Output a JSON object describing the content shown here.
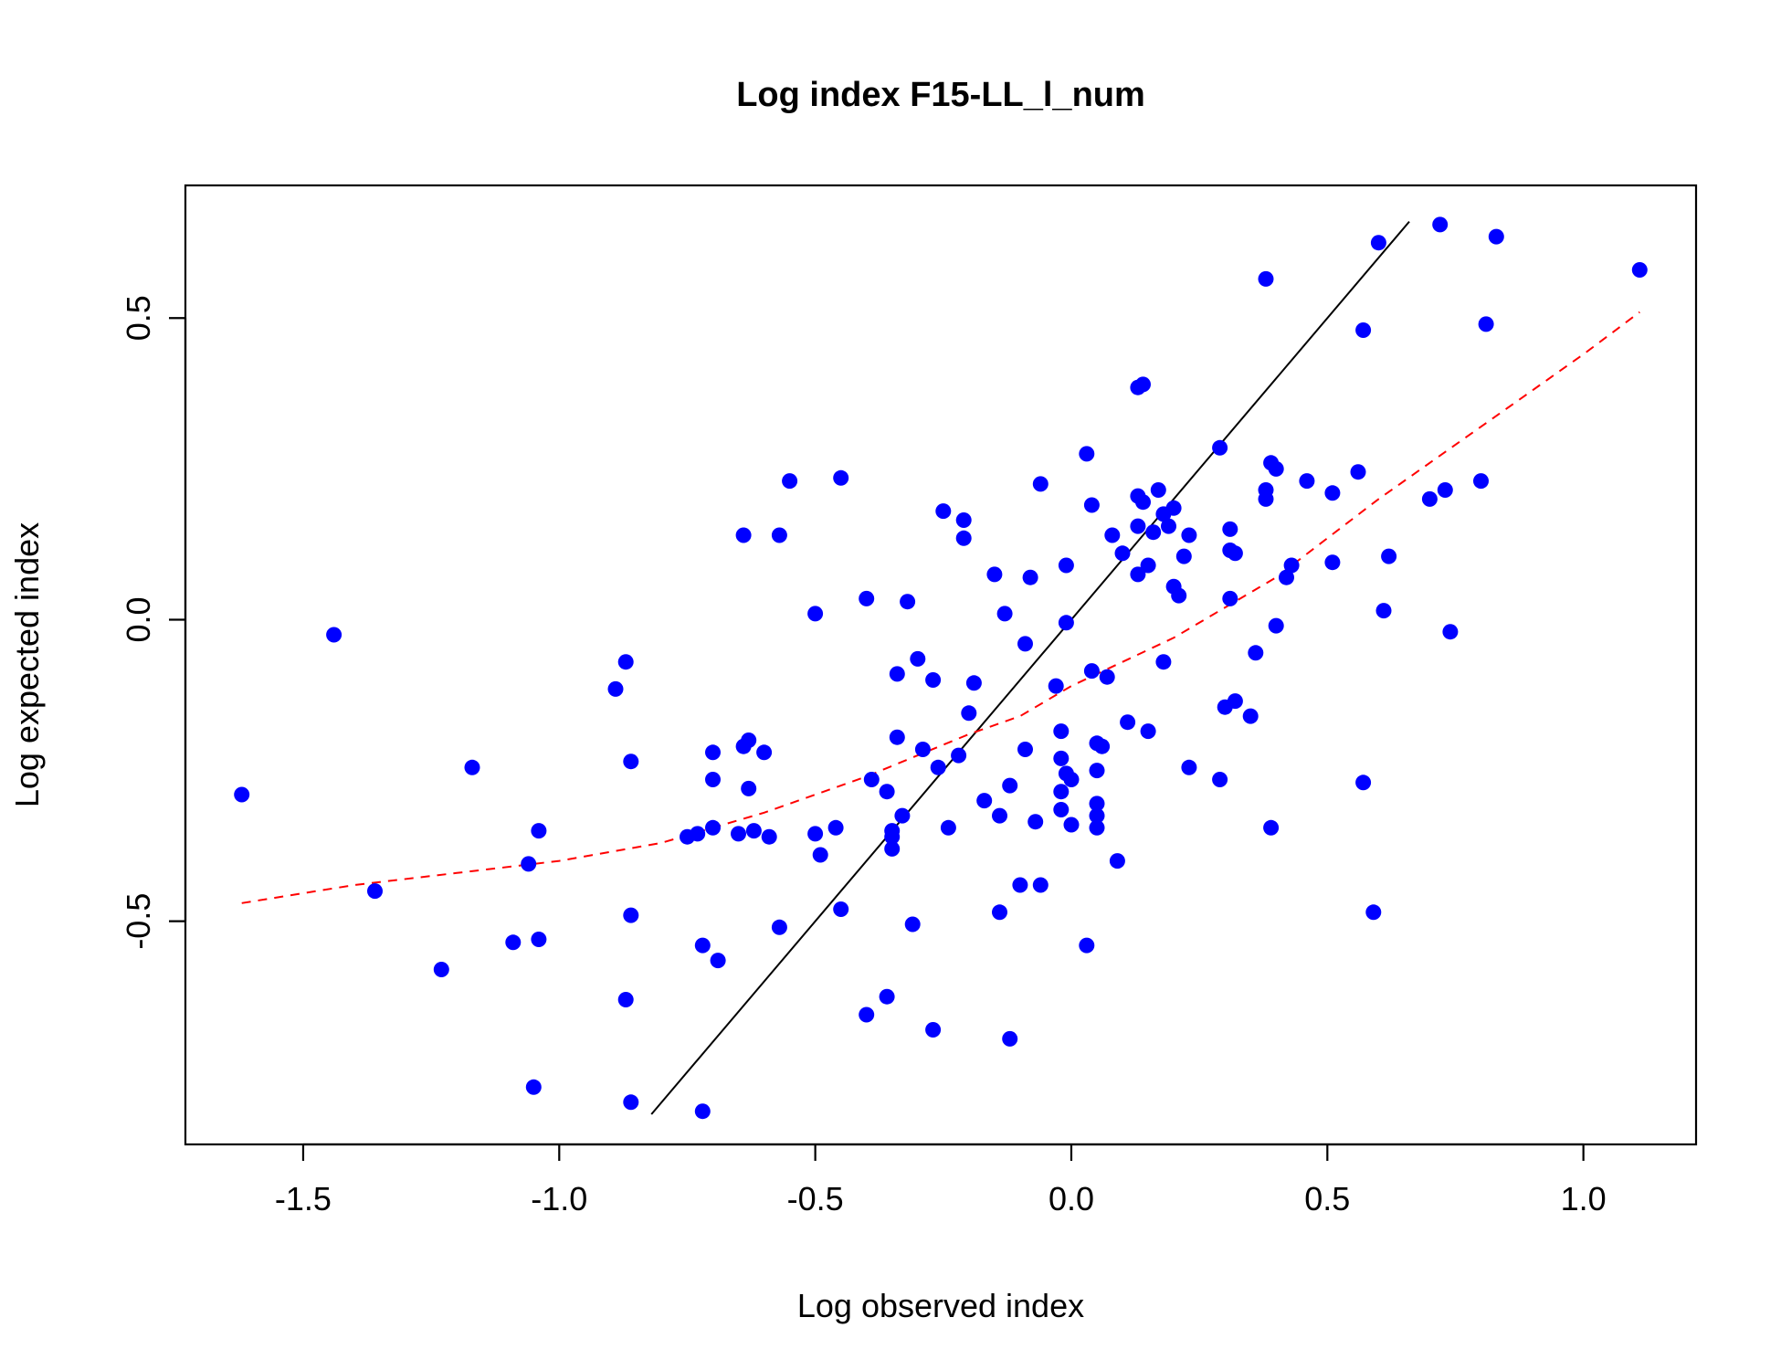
{
  "chart_data": {
    "type": "scatter",
    "title": "Log index F15-LL_l_num",
    "xlabel": "Log observed index",
    "ylabel": "Log expected index",
    "xlim": [
      -1.73,
      1.22
    ],
    "ylim": [
      -0.87,
      0.72
    ],
    "x_ticks": [
      -1.5,
      -1.0,
      -0.5,
      0.0,
      0.5,
      1.0
    ],
    "x_tick_labels": [
      "-1.5",
      "-1.0",
      "-0.5",
      "0.0",
      "0.5",
      "1.0"
    ],
    "y_ticks": [
      -0.5,
      0.0,
      0.5
    ],
    "y_tick_labels": [
      "-0.5",
      "0.0",
      "0.5"
    ],
    "grid": false,
    "legend": "none",
    "point_color": "#0000ff",
    "identity_line": {
      "color": "#000000",
      "x": [
        -0.82,
        0.66
      ],
      "y": [
        -0.82,
        0.66
      ]
    },
    "smooth_line": {
      "color": "#ff0000",
      "style": "dashed",
      "x": [
        -1.62,
        -1.4,
        -1.2,
        -1.0,
        -0.8,
        -0.6,
        -0.4,
        -0.2,
        -0.1,
        0.0,
        0.2,
        0.4,
        0.6,
        0.8,
        1.0,
        1.11
      ],
      "y": [
        -0.47,
        -0.44,
        -0.42,
        -0.4,
        -0.37,
        -0.32,
        -0.26,
        -0.19,
        -0.16,
        -0.11,
        -0.03,
        0.07,
        0.2,
        0.32,
        0.44,
        0.51
      ]
    },
    "points": [
      [
        -1.62,
        -0.29
      ],
      [
        -1.44,
        -0.025
      ],
      [
        -1.36,
        -0.45
      ],
      [
        -1.23,
        -0.58
      ],
      [
        -1.17,
        -0.245
      ],
      [
        -1.09,
        -0.535
      ],
      [
        -1.06,
        -0.405
      ],
      [
        -1.05,
        -0.775
      ],
      [
        -1.04,
        -0.35
      ],
      [
        -1.04,
        -0.53
      ],
      [
        -0.89,
        -0.115
      ],
      [
        -0.87,
        -0.07
      ],
      [
        -0.87,
        -0.63
      ],
      [
        -0.86,
        -0.235
      ],
      [
        -0.86,
        -0.49
      ],
      [
        -0.86,
        -0.8
      ],
      [
        -0.75,
        -0.36
      ],
      [
        -0.73,
        -0.355
      ],
      [
        -0.72,
        -0.54
      ],
      [
        -0.72,
        -0.815
      ],
      [
        -0.7,
        -0.22
      ],
      [
        -0.7,
        -0.265
      ],
      [
        -0.7,
        -0.345
      ],
      [
        -0.69,
        -0.565
      ],
      [
        -0.65,
        -0.355
      ],
      [
        -0.64,
        -0.21
      ],
      [
        -0.64,
        0.14
      ],
      [
        -0.63,
        -0.2
      ],
      [
        -0.63,
        -0.28
      ],
      [
        -0.62,
        -0.35
      ],
      [
        -0.6,
        -0.22
      ],
      [
        -0.59,
        -0.36
      ],
      [
        -0.57,
        0.14
      ],
      [
        -0.57,
        -0.51
      ],
      [
        -0.55,
        0.23
      ],
      [
        -0.5,
        -0.355
      ],
      [
        -0.5,
        0.01
      ],
      [
        -0.49,
        -0.39
      ],
      [
        -0.46,
        -0.345
      ],
      [
        -0.45,
        0.235
      ],
      [
        -0.45,
        -0.48
      ],
      [
        -0.4,
        -0.655
      ],
      [
        -0.4,
        0.035
      ],
      [
        -0.39,
        -0.265
      ],
      [
        -0.36,
        -0.625
      ],
      [
        -0.36,
        -0.285
      ],
      [
        -0.35,
        -0.36
      ],
      [
        -0.35,
        -0.35
      ],
      [
        -0.35,
        -0.38
      ],
      [
        -0.34,
        -0.09
      ],
      [
        -0.34,
        -0.195
      ],
      [
        -0.33,
        -0.325
      ],
      [
        -0.32,
        0.03
      ],
      [
        -0.31,
        -0.505
      ],
      [
        -0.3,
        -0.065
      ],
      [
        -0.29,
        -0.215
      ],
      [
        -0.27,
        -0.1
      ],
      [
        -0.27,
        -0.68
      ],
      [
        -0.26,
        -0.245
      ],
      [
        -0.25,
        0.18
      ],
      [
        -0.24,
        -0.345
      ],
      [
        -0.22,
        -0.225
      ],
      [
        -0.21,
        0.165
      ],
      [
        -0.21,
        0.135
      ],
      [
        -0.2,
        -0.155
      ],
      [
        -0.19,
        -0.105
      ],
      [
        -0.17,
        -0.3
      ],
      [
        -0.15,
        0.075
      ],
      [
        -0.14,
        -0.325
      ],
      [
        -0.14,
        -0.485
      ],
      [
        -0.13,
        0.01
      ],
      [
        -0.12,
        -0.275
      ],
      [
        -0.12,
        -0.695
      ],
      [
        -0.1,
        -0.44
      ],
      [
        -0.09,
        -0.215
      ],
      [
        -0.09,
        -0.04
      ],
      [
        -0.08,
        0.07
      ],
      [
        -0.07,
        -0.335
      ],
      [
        -0.06,
        -0.44
      ],
      [
        -0.06,
        0.225
      ],
      [
        -0.03,
        -0.11
      ],
      [
        -0.02,
        -0.185
      ],
      [
        -0.02,
        -0.23
      ],
      [
        -0.02,
        -0.285
      ],
      [
        -0.02,
        -0.315
      ],
      [
        -0.01,
        0.09
      ],
      [
        -0.01,
        -0.255
      ],
      [
        -0.01,
        -0.005
      ],
      [
        0.0,
        -0.265
      ],
      [
        0.0,
        -0.34
      ],
      [
        0.03,
        0.275
      ],
      [
        0.03,
        -0.54
      ],
      [
        0.04,
        0.19
      ],
      [
        0.04,
        -0.085
      ],
      [
        0.05,
        -0.305
      ],
      [
        0.05,
        -0.325
      ],
      [
        0.05,
        -0.345
      ],
      [
        0.05,
        -0.205
      ],
      [
        0.05,
        -0.25
      ],
      [
        0.06,
        -0.21
      ],
      [
        0.07,
        -0.095
      ],
      [
        0.08,
        0.14
      ],
      [
        0.09,
        -0.4
      ],
      [
        0.1,
        0.11
      ],
      [
        0.11,
        -0.17
      ],
      [
        0.13,
        0.385
      ],
      [
        0.13,
        0.155
      ],
      [
        0.13,
        0.075
      ],
      [
        0.13,
        0.205
      ],
      [
        0.14,
        0.195
      ],
      [
        0.14,
        0.39
      ],
      [
        0.15,
        0.09
      ],
      [
        0.15,
        -0.185
      ],
      [
        0.16,
        0.145
      ],
      [
        0.17,
        0.215
      ],
      [
        0.18,
        0.175
      ],
      [
        0.18,
        -0.07
      ],
      [
        0.19,
        0.155
      ],
      [
        0.2,
        0.185
      ],
      [
        0.2,
        0.055
      ],
      [
        0.21,
        0.04
      ],
      [
        0.22,
        0.105
      ],
      [
        0.23,
        0.14
      ],
      [
        0.23,
        -0.245
      ],
      [
        0.29,
        0.285
      ],
      [
        0.29,
        -0.265
      ],
      [
        0.3,
        -0.145
      ],
      [
        0.31,
        0.115
      ],
      [
        0.31,
        0.15
      ],
      [
        0.31,
        0.035
      ],
      [
        0.32,
        0.11
      ],
      [
        0.32,
        -0.135
      ],
      [
        0.35,
        -0.16
      ],
      [
        0.36,
        -0.055
      ],
      [
        0.38,
        0.565
      ],
      [
        0.38,
        0.215
      ],
      [
        0.38,
        0.2
      ],
      [
        0.39,
        0.26
      ],
      [
        0.39,
        -0.345
      ],
      [
        0.4,
        0.25
      ],
      [
        0.4,
        -0.01
      ],
      [
        0.42,
        0.07
      ],
      [
        0.43,
        0.09
      ],
      [
        0.46,
        0.23
      ],
      [
        0.51,
        0.095
      ],
      [
        0.51,
        0.21
      ],
      [
        0.56,
        0.245
      ],
      [
        0.57,
        0.48
      ],
      [
        0.57,
        -0.27
      ],
      [
        0.59,
        -0.485
      ],
      [
        0.6,
        0.625
      ],
      [
        0.61,
        0.015
      ],
      [
        0.62,
        0.105
      ],
      [
        0.7,
        0.2
      ],
      [
        0.72,
        0.655
      ],
      [
        0.73,
        0.215
      ],
      [
        0.74,
        -0.02
      ],
      [
        0.8,
        0.23
      ],
      [
        0.81,
        0.49
      ],
      [
        0.83,
        0.635
      ],
      [
        1.11,
        0.58
      ]
    ]
  }
}
